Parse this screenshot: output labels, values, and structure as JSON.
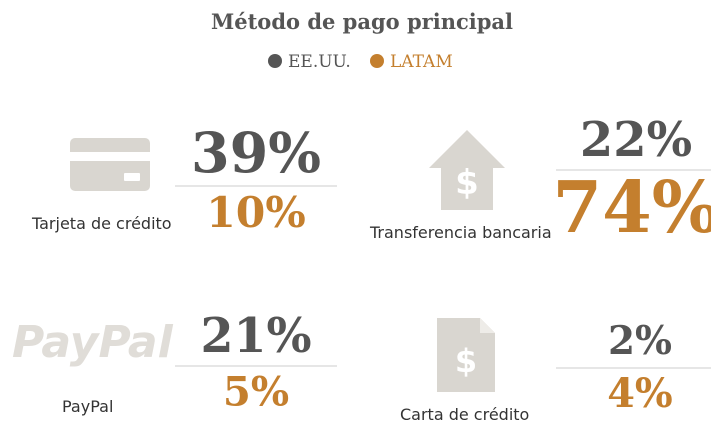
{
  "chart_data": {
    "type": "infographic",
    "title": "Método de pago principal",
    "categories": [
      "Tarjeta de crédito",
      "Transferencia bancaria",
      "PayPal",
      "Carta de crédito"
    ],
    "logo_text": "PayPal",
    "series": [
      {
        "name": "EE.UU.",
        "color": "#555555",
        "values": [
          39,
          22,
          21,
          2
        ],
        "value_labels": [
          "39%",
          "22%",
          "21%",
          "2%"
        ]
      },
      {
        "name": "LATAM",
        "color": "#c47f2e",
        "values": [
          10,
          74,
          5,
          4
        ],
        "value_labels": [
          "10%",
          "74%",
          "5%",
          "4%"
        ]
      }
    ]
  }
}
